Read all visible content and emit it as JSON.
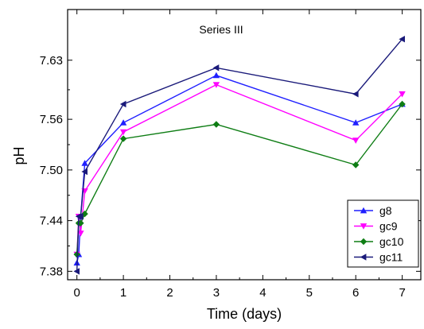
{
  "chart_data": {
    "type": "line",
    "annotation": "Series III",
    "xlabel": "Time (days)",
    "ylabel": "pH",
    "xlim": [
      -0.2,
      7.4
    ],
    "ylim": [
      7.37,
      7.69
    ],
    "x_ticks": [
      0,
      1,
      2,
      3,
      4,
      5,
      6,
      7
    ],
    "x_tick_labels": [
      "0",
      "1",
      "2",
      "3",
      "4",
      "5",
      "6",
      "7"
    ],
    "y_ticks": [
      7.38,
      7.44,
      7.5,
      7.56,
      7.63
    ],
    "y_tick_labels": [
      "7.38",
      "7.44",
      "7.50",
      "7.56",
      "7.63"
    ],
    "grid": false,
    "legend_position": "bottom-right",
    "series": [
      {
        "name": "g8",
        "color": "#1f1fff",
        "marker": "triangle-up",
        "x": [
          0,
          0.04,
          0.08,
          0.17,
          1,
          3,
          6,
          7
        ],
        "y": [
          7.39,
          7.4,
          7.445,
          7.508,
          7.556,
          7.612,
          7.556,
          7.578
        ]
      },
      {
        "name": "gc9",
        "color": "#ff00ff",
        "marker": "triangle-down",
        "x": [
          0,
          0.04,
          0.08,
          0.17,
          1,
          3,
          6,
          7
        ],
        "y": [
          7.4,
          7.445,
          7.425,
          7.475,
          7.545,
          7.601,
          7.535,
          7.59
        ]
      },
      {
        "name": "gc10",
        "color": "#0e7d14",
        "marker": "diamond",
        "x": [
          0,
          0.04,
          0.08,
          0.17,
          1,
          3,
          6,
          7
        ],
        "y": [
          7.4,
          7.437,
          7.437,
          7.448,
          7.537,
          7.554,
          7.506,
          7.578
        ]
      },
      {
        "name": "gc11",
        "color": "#1a1a7a",
        "marker": "triangle-left",
        "x": [
          0,
          0.04,
          0.08,
          0.17,
          1,
          3,
          6,
          7
        ],
        "y": [
          7.38,
          7.445,
          7.445,
          7.498,
          7.578,
          7.621,
          7.59,
          7.655
        ]
      }
    ]
  }
}
